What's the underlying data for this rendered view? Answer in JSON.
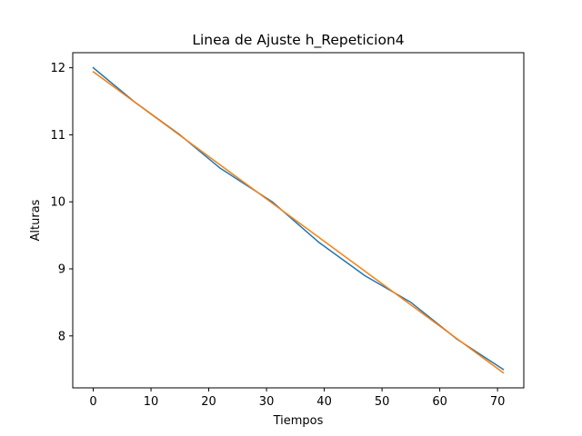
{
  "chart_data": {
    "type": "line",
    "title": "Linea de Ajuste h_Repeticion4",
    "xlabel": "Tiempos",
    "ylabel": "Alturas",
    "xlim": [
      -3.55,
      74.55
    ],
    "ylim": [
      7.225,
      12.225
    ],
    "xticks": [
      0,
      10,
      20,
      30,
      40,
      50,
      60,
      70
    ],
    "yticks": [
      8,
      9,
      10,
      11,
      12
    ],
    "grid": false,
    "legend": "none",
    "series": [
      {
        "color": "#1f77b4",
        "x": [
          0,
          7,
          15,
          22,
          31,
          39,
          47,
          55,
          63,
          71
        ],
        "y": [
          12.0,
          11.5,
          11.0,
          10.5,
          10.0,
          9.4,
          8.9,
          8.5,
          7.95,
          7.5
        ]
      },
      {
        "color": "#ff7f0e",
        "x": [
          0,
          71
        ],
        "y": [
          11.94,
          7.45
        ]
      }
    ]
  }
}
